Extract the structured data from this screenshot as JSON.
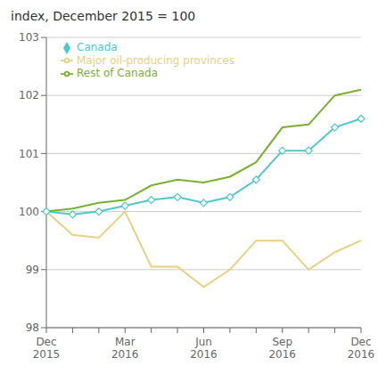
{
  "chart_data": {
    "type": "line",
    "title": "index, December 2015 = 100",
    "categories": [
      "Dec\n2015",
      null,
      null,
      "Mar\n2016",
      null,
      null,
      "Jun\n2016",
      null,
      null,
      "Sep\n2016",
      null,
      null,
      "Dec\n2016"
    ],
    "series": [
      {
        "name": "Canada",
        "color": "#4ec9c9",
        "marker": "diamond",
        "values": [
          100.0,
          99.95,
          100.0,
          100.1,
          100.2,
          100.25,
          100.15,
          100.25,
          100.55,
          101.05,
          101.05,
          101.45,
          101.6
        ]
      },
      {
        "name": "Major oil-producing provinces",
        "color": "#e8d080",
        "values": [
          100.0,
          99.6,
          99.55,
          100.0,
          99.05,
          99.05,
          98.7,
          99.0,
          99.5,
          99.5,
          99.0,
          99.3,
          99.5
        ]
      },
      {
        "name": "Rest of Canada",
        "color": "#7ab030",
        "values": [
          100.0,
          100.05,
          100.15,
          100.2,
          100.45,
          100.55,
          100.5,
          100.6,
          100.85,
          101.45,
          101.5,
          102.0,
          102.1
        ]
      }
    ],
    "ylim": [
      98,
      103
    ],
    "yticks": [
      98,
      99,
      100,
      101,
      102,
      103
    ],
    "grid": true,
    "legend": "upper left"
  }
}
